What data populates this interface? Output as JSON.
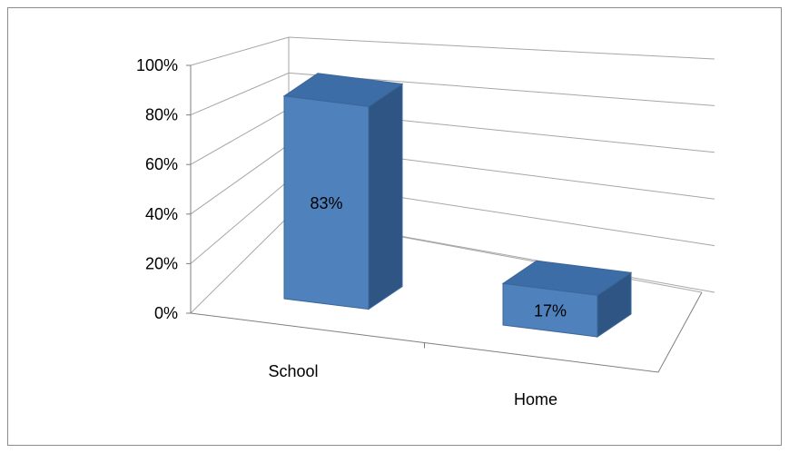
{
  "chart_data": {
    "type": "bar",
    "style": "3d-column",
    "categories": [
      "School",
      "Home"
    ],
    "values": [
      83,
      17
    ],
    "data_labels": [
      "83%",
      "17%"
    ],
    "y_ticks": [
      {
        "value": 0,
        "label": "0%"
      },
      {
        "value": 20,
        "label": "20%"
      },
      {
        "value": 40,
        "label": "40%"
      },
      {
        "value": 60,
        "label": "60%"
      },
      {
        "value": 80,
        "label": "80%"
      },
      {
        "value": 100,
        "label": "100%"
      }
    ],
    "ylim": [
      0,
      100
    ],
    "grid": true,
    "legend": "none",
    "colors": {
      "bar_front": "#4F81BD",
      "bar_top": "#3D6DA6",
      "bar_side": "#2F5584",
      "bar_edge": "#3A6798",
      "gridline": "#A6A6A6",
      "axis": "#7F7F7F",
      "frame": "#8C8C8C"
    }
  }
}
